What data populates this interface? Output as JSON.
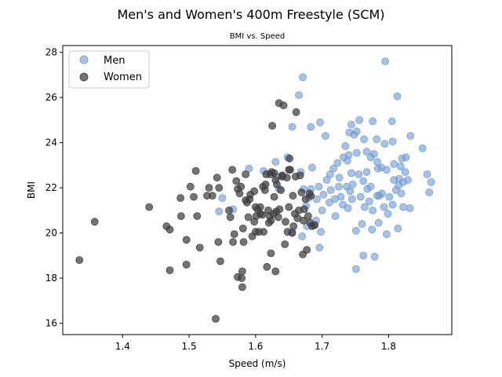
{
  "chart_data": {
    "type": "scatter",
    "title": "Men's and Women's 400m Freestyle (SCM)",
    "subtitle": "BMI vs. Speed",
    "xlabel": "Speed (m/s)",
    "ylabel": "BMI",
    "xlim": [
      1.31,
      1.895
    ],
    "ylim": [
      15.5,
      28.3
    ],
    "xticks": [
      1.4,
      1.5,
      1.6,
      1.7,
      1.8
    ],
    "yticks": [
      16,
      18,
      20,
      22,
      24,
      26,
      28
    ],
    "legend_position": "top-left",
    "series": [
      {
        "name": "Men",
        "color": "#6f9ad1",
        "points": [
          [
            1.671,
            26.9
          ],
          [
            1.665,
            26.1
          ],
          [
            1.795,
            27.6
          ],
          [
            1.813,
            26.05
          ],
          [
            1.655,
            24.7
          ],
          [
            1.683,
            24.7
          ],
          [
            1.697,
            24.9
          ],
          [
            1.741,
            24.45
          ],
          [
            1.744,
            24.8
          ],
          [
            1.756,
            25.0
          ],
          [
            1.776,
            24.95
          ],
          [
            1.805,
            24.95
          ],
          [
            1.833,
            24.3
          ],
          [
            1.851,
            23.75
          ],
          [
            1.705,
            24.3
          ],
          [
            1.735,
            23.85
          ],
          [
            1.748,
            24.35
          ],
          [
            1.763,
            24.15
          ],
          [
            1.782,
            24.15
          ],
          [
            1.794,
            23.95
          ],
          [
            1.806,
            24.05
          ],
          [
            1.82,
            23.3
          ],
          [
            1.826,
            23.35
          ],
          [
            1.818,
            22.95
          ],
          [
            1.685,
            22.9
          ],
          [
            1.717,
            22.85
          ],
          [
            1.723,
            23.1
          ],
          [
            1.732,
            23.35
          ],
          [
            1.74,
            23.45
          ],
          [
            1.752,
            23.55
          ],
          [
            1.767,
            23.6
          ],
          [
            1.778,
            23.5
          ],
          [
            1.789,
            22.9
          ],
          [
            1.797,
            22.8
          ],
          [
            1.808,
            22.35
          ],
          [
            1.816,
            22.4
          ],
          [
            1.825,
            22.7
          ],
          [
            1.829,
            22.35
          ],
          [
            1.858,
            22.6
          ],
          [
            1.864,
            22.25
          ],
          [
            1.695,
            22.05
          ],
          [
            1.707,
            22.35
          ],
          [
            1.713,
            21.9
          ],
          [
            1.725,
            22.05
          ],
          [
            1.737,
            22.05
          ],
          [
            1.746,
            22.15
          ],
          [
            1.755,
            22.6
          ],
          [
            1.762,
            22.3
          ],
          [
            1.773,
            22.05
          ],
          [
            1.783,
            21.65
          ],
          [
            1.79,
            21.75
          ],
          [
            1.801,
            21.6
          ],
          [
            1.811,
            21.9
          ],
          [
            1.819,
            21.75
          ],
          [
            1.822,
            21.15
          ],
          [
            1.832,
            21.1
          ],
          [
            1.861,
            21.8
          ],
          [
            1.672,
            21.95
          ],
          [
            1.68,
            21.55
          ],
          [
            1.692,
            21.5
          ],
          [
            1.702,
            21.7
          ],
          [
            1.719,
            21.5
          ],
          [
            1.728,
            21.6
          ],
          [
            1.742,
            21.85
          ],
          [
            1.758,
            21.6
          ],
          [
            1.768,
            21.95
          ],
          [
            1.786,
            21.65
          ],
          [
            1.814,
            20.2
          ],
          [
            1.806,
            21.25
          ],
          [
            1.745,
            21.5
          ],
          [
            1.731,
            21.25
          ],
          [
            1.711,
            21.35
          ],
          [
            1.7,
            21.0
          ],
          [
            1.691,
            20.55
          ],
          [
            1.687,
            20.35
          ],
          [
            1.698,
            20.05
          ],
          [
            1.764,
            21.15
          ],
          [
            1.776,
            21.0
          ],
          [
            1.793,
            21.15
          ],
          [
            1.799,
            20.85
          ],
          [
            1.76,
            20.4
          ],
          [
            1.775,
            20.15
          ],
          [
            1.785,
            20.45
          ],
          [
            1.797,
            19.95
          ],
          [
            1.751,
            20.1
          ],
          [
            1.696,
            19.35
          ],
          [
            1.762,
            19.0
          ],
          [
            1.779,
            18.95
          ],
          [
            1.751,
            18.4
          ],
          [
            1.655,
            20.05
          ],
          [
            1.67,
            19.85
          ],
          [
            1.677,
            20.3
          ],
          [
            1.683,
            21.95
          ],
          [
            1.676,
            21.2
          ],
          [
            1.635,
            21.95
          ],
          [
            1.633,
            22.5
          ],
          [
            1.63,
            23.15
          ],
          [
            1.648,
            23.35
          ],
          [
            1.668,
            22.7
          ],
          [
            1.59,
            22.85
          ],
          [
            1.612,
            22.75
          ],
          [
            1.566,
            21.05
          ],
          [
            1.55,
            21.55
          ],
          [
            1.545,
            20.95
          ],
          [
            1.72,
            20.75
          ],
          [
            1.767,
            22.7
          ],
          [
            1.744,
            22.65
          ],
          [
            1.783,
            23.15
          ],
          [
            1.808,
            23.05
          ],
          [
            1.822,
            22.25
          ],
          [
            1.815,
            22.1
          ],
          [
            1.739,
            21.1
          ],
          [
            1.726,
            22.45
          ],
          [
            1.771,
            21.4
          ],
          [
            1.784,
            22.85
          ],
          [
            1.752,
            24.5
          ],
          [
            1.738,
            23.2
          ],
          [
            1.773,
            23.35
          ],
          [
            1.712,
            22.6
          ]
        ]
      },
      {
        "name": "Women",
        "color": "#3f3f3f",
        "points": [
          [
            1.335,
            18.8
          ],
          [
            1.358,
            20.5
          ],
          [
            1.44,
            21.15
          ],
          [
            1.466,
            20.3
          ],
          [
            1.471,
            20.15
          ],
          [
            1.471,
            18.35
          ],
          [
            1.488,
            20.75
          ],
          [
            1.487,
            21.55
          ],
          [
            1.496,
            18.6
          ],
          [
            1.496,
            19.7
          ],
          [
            1.502,
            22.05
          ],
          [
            1.507,
            21.6
          ],
          [
            1.51,
            22.75
          ],
          [
            1.512,
            20.75
          ],
          [
            1.516,
            19.35
          ],
          [
            1.527,
            21.65
          ],
          [
            1.53,
            22.0
          ],
          [
            1.535,
            21.65
          ],
          [
            1.54,
            16.2
          ],
          [
            1.542,
            22.45
          ],
          [
            1.544,
            19.6
          ],
          [
            1.545,
            22.0
          ],
          [
            1.547,
            18.75
          ],
          [
            1.56,
            21.0
          ],
          [
            1.562,
            20.7
          ],
          [
            1.565,
            22.8
          ],
          [
            1.566,
            19.6
          ],
          [
            1.568,
            19.95
          ],
          [
            1.571,
            22.3
          ],
          [
            1.573,
            18.05
          ],
          [
            1.576,
            21.75
          ],
          [
            1.578,
            22.05
          ],
          [
            1.579,
            18.0
          ],
          [
            1.58,
            18.3
          ],
          [
            1.58,
            17.6
          ],
          [
            1.581,
            20.2
          ],
          [
            1.582,
            19.6
          ],
          [
            1.585,
            22.6
          ],
          [
            1.587,
            21.35
          ],
          [
            1.589,
            20.7
          ],
          [
            1.591,
            21.5
          ],
          [
            1.592,
            21.7
          ],
          [
            1.595,
            19.85
          ],
          [
            1.598,
            20.5
          ],
          [
            1.6,
            20.05
          ],
          [
            1.6,
            21.15
          ],
          [
            1.601,
            20.75
          ],
          [
            1.603,
            21.05
          ],
          [
            1.605,
            20.05
          ],
          [
            1.607,
            20.85
          ],
          [
            1.607,
            21.15
          ],
          [
            1.61,
            20.8
          ],
          [
            1.612,
            20.05
          ],
          [
            1.614,
            21.9
          ],
          [
            1.615,
            22.15
          ],
          [
            1.616,
            22.6
          ],
          [
            1.617,
            18.5
          ],
          [
            1.619,
            21.0
          ],
          [
            1.62,
            20.45
          ],
          [
            1.621,
            20.75
          ],
          [
            1.623,
            19.1
          ],
          [
            1.623,
            20.55
          ],
          [
            1.624,
            22.7
          ],
          [
            1.625,
            24.75
          ],
          [
            1.627,
            20.85
          ],
          [
            1.628,
            21.6
          ],
          [
            1.628,
            22.65
          ],
          [
            1.63,
            18.3
          ],
          [
            1.631,
            20.95
          ],
          [
            1.632,
            22.15
          ],
          [
            1.634,
            20.7
          ],
          [
            1.635,
            25.75
          ],
          [
            1.636,
            21.05
          ],
          [
            1.638,
            21.9
          ],
          [
            1.64,
            22.5
          ],
          [
            1.642,
            25.65
          ],
          [
            1.644,
            19.5
          ],
          [
            1.645,
            20.5
          ],
          [
            1.647,
            22.45
          ],
          [
            1.648,
            20.05
          ],
          [
            1.65,
            21.15
          ],
          [
            1.651,
            23.3
          ],
          [
            1.652,
            22.8
          ],
          [
            1.655,
            20.0
          ],
          [
            1.656,
            21.65
          ],
          [
            1.657,
            20.3
          ],
          [
            1.659,
            20.85
          ],
          [
            1.66,
            22.5
          ],
          [
            1.661,
            25.35
          ],
          [
            1.663,
            20.65
          ],
          [
            1.665,
            21.0
          ],
          [
            1.667,
            22.55
          ],
          [
            1.669,
            21.8
          ],
          [
            1.671,
            19.05
          ],
          [
            1.672,
            20.55
          ],
          [
            1.673,
            21.05
          ],
          [
            1.675,
            21.5
          ],
          [
            1.677,
            19.25
          ],
          [
            1.679,
            20.75
          ],
          [
            1.681,
            21.75
          ],
          [
            1.682,
            20.45
          ],
          [
            1.683,
            21.65
          ],
          [
            1.685,
            20.3
          ],
          [
            1.689,
            20.35
          ],
          [
            1.622,
            22.6
          ],
          [
            1.611,
            22.05
          ],
          [
            1.598,
            21.85
          ],
          [
            1.585,
            21.45
          ],
          [
            1.573,
            21.95
          ],
          [
            1.65,
            22.8
          ],
          [
            1.64,
            22.55
          ],
          [
            1.63,
            22.35
          ]
        ]
      }
    ]
  }
}
